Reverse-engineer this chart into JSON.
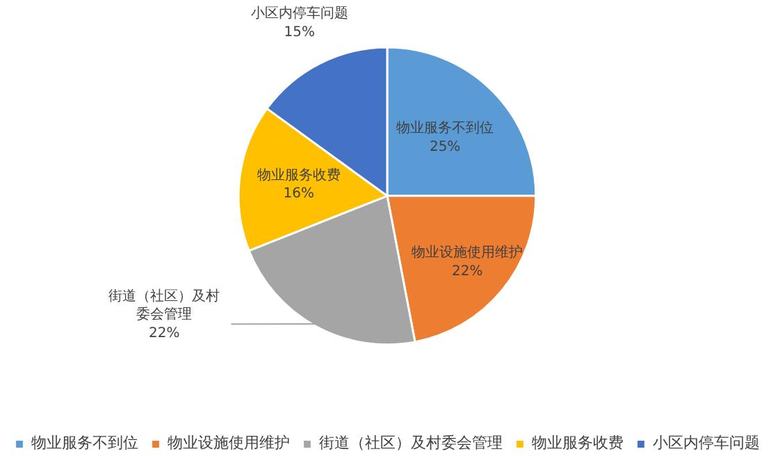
{
  "chart_data": {
    "type": "pie",
    "categories": [
      "物业服务不到位",
      "物业设施使用维护",
      "街道（社区）及村委会管理",
      "物业服务收费",
      "小区内停车问题"
    ],
    "values": [
      25,
      22,
      22,
      16,
      15
    ],
    "colors": [
      "#5b9bd5",
      "#ed7d31",
      "#a5a5a5",
      "#ffc000",
      "#4472c4"
    ],
    "value_labels": [
      "25%",
      "22%",
      "22%",
      "16%",
      "15%"
    ],
    "legend": "bottom"
  }
}
